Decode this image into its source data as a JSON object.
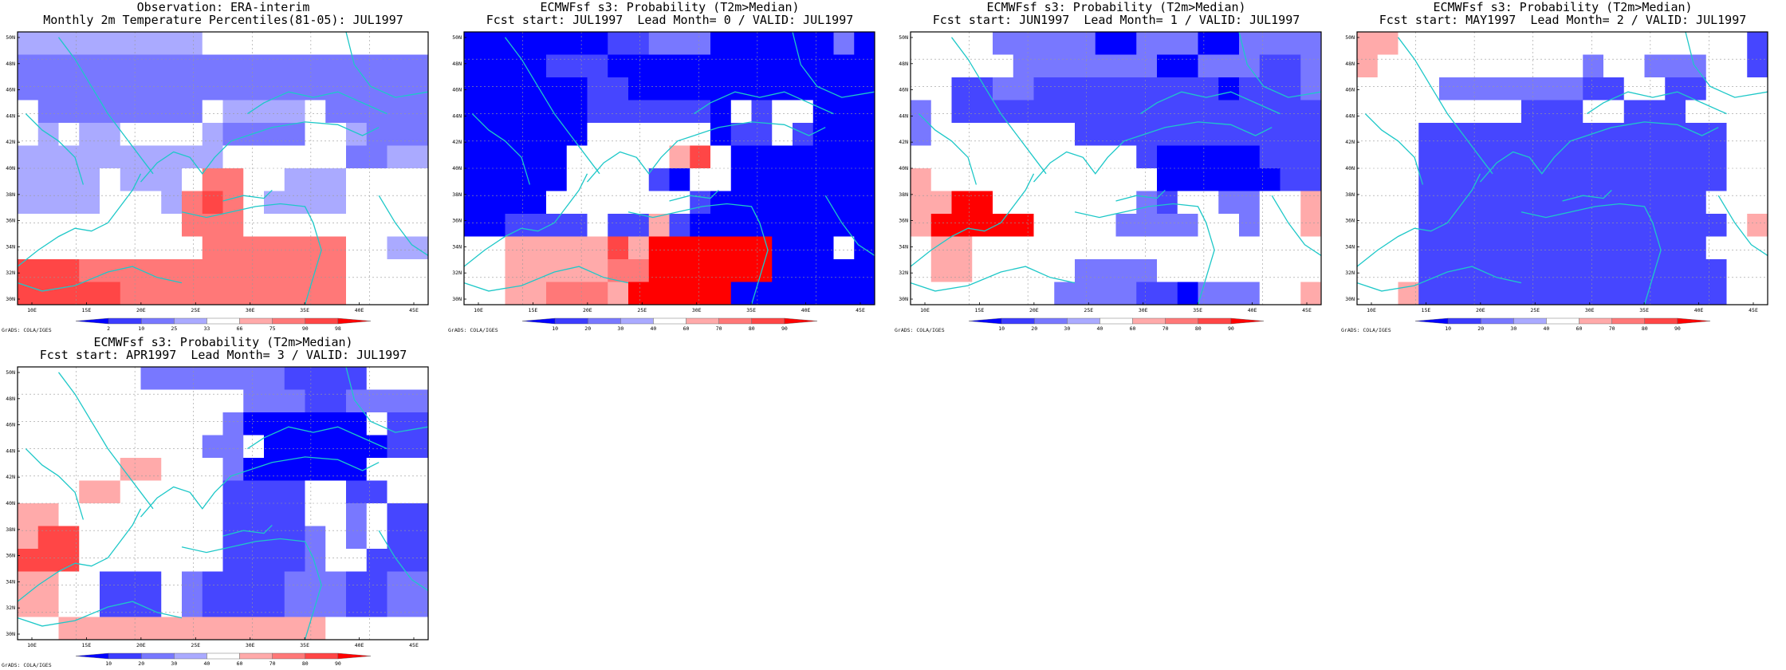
{
  "map": {
    "lat_ticks": [
      "30N",
      "32N",
      "34N",
      "36N",
      "38N",
      "40N",
      "42N",
      "44N",
      "46N",
      "48N",
      "50N"
    ],
    "lon_ticks": [
      "10E",
      "15E",
      "20E",
      "25E",
      "30E",
      "35E",
      "40E",
      "45E"
    ],
    "coast_color": "#1ec8c8",
    "credit": "GrADS: COLA/IGES",
    "colors": {
      "deep_blue": "#0000ff",
      "blue": "#4646ff",
      "mid_blue": "#7878ff",
      "light_blue": "#aaaaff",
      "white": "#ffffff",
      "light_red": "#ffaaaa",
      "mid_red": "#ff7878",
      "red": "#ff4646",
      "deep_red": "#ff0000"
    }
  },
  "panels": [
    {
      "title_line1": "Observation: ERA-interim",
      "title_line2": "Monthly 2m Temperature Percentiles(81-05): JUL1997",
      "legend_labels": [
        "2",
        "10",
        "25",
        "33",
        "66",
        "75",
        "90",
        "98"
      ],
      "grid": [
        "lllllllll33333333333",
        "bbbbbbbbbbbbbbbbbbbb",
        "bbbbbbbbbbbbbbbbbbbb",
        "3bbbbbbbb3llll3bbbbb",
        "3l3ll3333lbbbb33lbbb",
        "llllllllll333333bbll",
        "llll3lll3pp33lll3333",
        "llll333lprp3llll3333",
        "33333333ppp333333333",
        "333333333ppppppp33ll",
        "rrrppppppppppppp3333",
        "rrrrrppppppppppp3333"
      ]
    },
    {
      "title_line1": "ECMWFsf s3: Probability (T2m>Median)",
      "title_line2": "Fcst start: JUL1997  Lead Month= 0 / VALID: JUL1997",
      "legend_labels": [
        "10",
        "20",
        "30",
        "40",
        "60",
        "70",
        "80",
        "90"
      ],
      "grid": [
        "DDDDDDDbblllDDDDDDlD",
        "DDDDbbbDDDDDDDDDDDDD",
        "DDDDDDbbDDDDDDDDDDDD",
        "DDDDDDbbbbbbD3b33DDD",
        "DDDDDD333333Dbb3bDDD",
        "DDDDD33333pr3DDDDDDD",
        "DDDDD3333bD33DDDDDDD",
        "DDDD3333333bDDDDDDDD",
        "DDbbbb3bbpbDDDDDDDDD",
        "33ppppprpRRRRRRDDD3D",
        "33pppppPPRRRRRRDDDDD",
        "33ppPPPpRRRRRDDDDDDD"
      ]
    },
    {
      "title_line1": "ECMWFsf s3: Probability (T2m>Median)",
      "title_line2": "Fcst start: JUN1997  Lead Month= 1 / VALID: JUL1997",
      "legend_labels": [
        "10",
        "20",
        "30",
        "40",
        "60",
        "70",
        "80",
        "90"
      ],
      "grid": [
        "3333lllllDDlllDDllll",
        "33333lllllllDDlllbbl",
        "33bbllbbbbbbbbbDbbbl",
        "l3bbbbbbbbbbbbbbbbbb",
        "l3333333bbbbbbbbbbbb",
        "33333333333bDDDDDbbb",
        "p33333333333DDDDDDbb",
        "ppRR3333333lb33ll33p",
        "pRRRRR3333llll33l33p",
        "3pp33333333333333333",
        "3pp33333llll33333333",
        "3333333llllbbDlll33p"
      ]
    },
    {
      "title_line1": "ECMWFsf s3: Probability (T2m>Median)",
      "title_line2": "Fcst start: MAY1997  Lead Month= 2 / VALID: JUL1997",
      "legend_labels": [
        "10",
        "20",
        "30",
        "40",
        "60",
        "70",
        "80",
        "90"
      ],
      "grid": [
        "pp33333333333333333b",
        "p3333333333l33lll33b",
        "3333lllllllbb33bb333",
        "33333333bbb33bbb3333",
        "333bbbbbbbbbbbbbbb33",
        "333bbbbbbbbbbbbbbb33",
        "333bbbbbbbbbbbbbbb33",
        "333bbbbbbbbbbbbbb333",
        "333bbbbbbbbbbbbbbb3p",
        "333bbbbbbbbbbbbbb333",
        "333bbbbbbbbbbbbbbb33",
        "33pbbbbbbbbbbbbbbb33"
      ]
    },
    {
      "title_line1": "ECMWFsf s3: Probability (T2m>Median)",
      "title_line2": "Fcst start: APR1997  Lead Month= 3 / VALID: JUL1997",
      "legend_labels": [
        "10",
        "20",
        "30",
        "40",
        "60",
        "70",
        "80",
        "90"
      ],
      "grid": [
        "333333lllllllbbbb333",
        "33333333333lllbbllll",
        "3333333333lDDDDDD3bb",
        "333333333ll DDDDDDbbb",
        "33333pp333lDDDDDD333",
        "333pp33333bbbb33bb33",
        "pp33333333bbbb33l3bb",
        "prr3333333bbbbl3l3bb",
        "rrr3333333bbbbl33bbb",
        "pp33bbb3lbbbblllbbll",
        "pp33bbb3lbbbblllbbll",
        "33ppppppppppppp33333"
      ]
    }
  ]
}
